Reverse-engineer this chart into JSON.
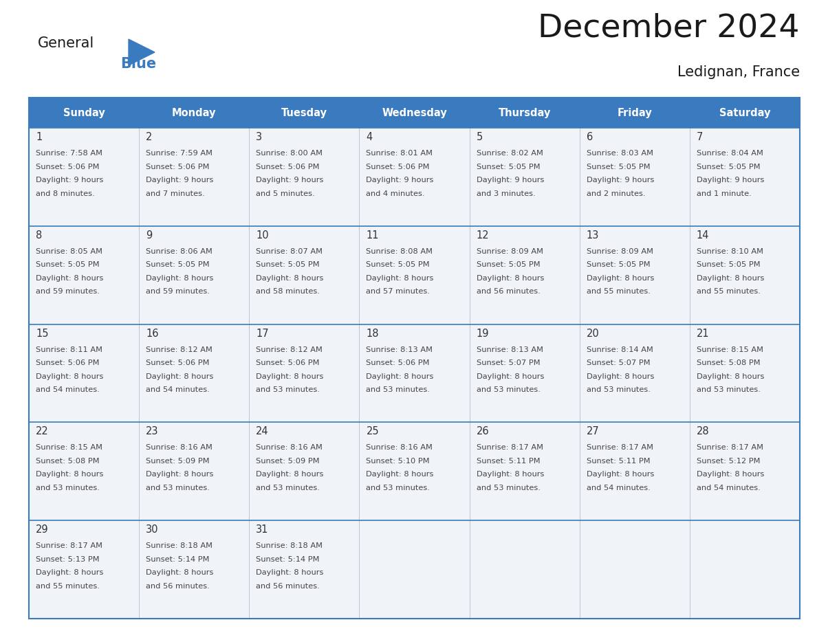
{
  "title": "December 2024",
  "subtitle": "Ledignan, France",
  "days_of_week": [
    "Sunday",
    "Monday",
    "Tuesday",
    "Wednesday",
    "Thursday",
    "Friday",
    "Saturday"
  ],
  "header_bg": "#3a7abf",
  "header_text": "#FFFFFF",
  "cell_bg": "#f0f4f8",
  "border_color": "#3a7abf",
  "day_num_color": "#333333",
  "cell_text_color": "#444444",
  "title_color": "#1a1a1a",
  "logo_general_color": "#1a1a1a",
  "logo_blue_color": "#3a7abf",
  "weeks": [
    [
      {
        "day": 1,
        "sunrise": "7:58 AM",
        "sunset": "5:06 PM",
        "daylight": "9 hours",
        "daylight2": "and 8 minutes."
      },
      {
        "day": 2,
        "sunrise": "7:59 AM",
        "sunset": "5:06 PM",
        "daylight": "9 hours",
        "daylight2": "and 7 minutes."
      },
      {
        "day": 3,
        "sunrise": "8:00 AM",
        "sunset": "5:06 PM",
        "daylight": "9 hours",
        "daylight2": "and 5 minutes."
      },
      {
        "day": 4,
        "sunrise": "8:01 AM",
        "sunset": "5:06 PM",
        "daylight": "9 hours",
        "daylight2": "and 4 minutes."
      },
      {
        "day": 5,
        "sunrise": "8:02 AM",
        "sunset": "5:05 PM",
        "daylight": "9 hours",
        "daylight2": "and 3 minutes."
      },
      {
        "day": 6,
        "sunrise": "8:03 AM",
        "sunset": "5:05 PM",
        "daylight": "9 hours",
        "daylight2": "and 2 minutes."
      },
      {
        "day": 7,
        "sunrise": "8:04 AM",
        "sunset": "5:05 PM",
        "daylight": "9 hours",
        "daylight2": "and 1 minute."
      }
    ],
    [
      {
        "day": 8,
        "sunrise": "8:05 AM",
        "sunset": "5:05 PM",
        "daylight": "8 hours",
        "daylight2": "and 59 minutes."
      },
      {
        "day": 9,
        "sunrise": "8:06 AM",
        "sunset": "5:05 PM",
        "daylight": "8 hours",
        "daylight2": "and 59 minutes."
      },
      {
        "day": 10,
        "sunrise": "8:07 AM",
        "sunset": "5:05 PM",
        "daylight": "8 hours",
        "daylight2": "and 58 minutes."
      },
      {
        "day": 11,
        "sunrise": "8:08 AM",
        "sunset": "5:05 PM",
        "daylight": "8 hours",
        "daylight2": "and 57 minutes."
      },
      {
        "day": 12,
        "sunrise": "8:09 AM",
        "sunset": "5:05 PM",
        "daylight": "8 hours",
        "daylight2": "and 56 minutes."
      },
      {
        "day": 13,
        "sunrise": "8:09 AM",
        "sunset": "5:05 PM",
        "daylight": "8 hours",
        "daylight2": "and 55 minutes."
      },
      {
        "day": 14,
        "sunrise": "8:10 AM",
        "sunset": "5:05 PM",
        "daylight": "8 hours",
        "daylight2": "and 55 minutes."
      }
    ],
    [
      {
        "day": 15,
        "sunrise": "8:11 AM",
        "sunset": "5:06 PM",
        "daylight": "8 hours",
        "daylight2": "and 54 minutes."
      },
      {
        "day": 16,
        "sunrise": "8:12 AM",
        "sunset": "5:06 PM",
        "daylight": "8 hours",
        "daylight2": "and 54 minutes."
      },
      {
        "day": 17,
        "sunrise": "8:12 AM",
        "sunset": "5:06 PM",
        "daylight": "8 hours",
        "daylight2": "and 53 minutes."
      },
      {
        "day": 18,
        "sunrise": "8:13 AM",
        "sunset": "5:06 PM",
        "daylight": "8 hours",
        "daylight2": "and 53 minutes."
      },
      {
        "day": 19,
        "sunrise": "8:13 AM",
        "sunset": "5:07 PM",
        "daylight": "8 hours",
        "daylight2": "and 53 minutes."
      },
      {
        "day": 20,
        "sunrise": "8:14 AM",
        "sunset": "5:07 PM",
        "daylight": "8 hours",
        "daylight2": "and 53 minutes."
      },
      {
        "day": 21,
        "sunrise": "8:15 AM",
        "sunset": "5:08 PM",
        "daylight": "8 hours",
        "daylight2": "and 53 minutes."
      }
    ],
    [
      {
        "day": 22,
        "sunrise": "8:15 AM",
        "sunset": "5:08 PM",
        "daylight": "8 hours",
        "daylight2": "and 53 minutes."
      },
      {
        "day": 23,
        "sunrise": "8:16 AM",
        "sunset": "5:09 PM",
        "daylight": "8 hours",
        "daylight2": "and 53 minutes."
      },
      {
        "day": 24,
        "sunrise": "8:16 AM",
        "sunset": "5:09 PM",
        "daylight": "8 hours",
        "daylight2": "and 53 minutes."
      },
      {
        "day": 25,
        "sunrise": "8:16 AM",
        "sunset": "5:10 PM",
        "daylight": "8 hours",
        "daylight2": "and 53 minutes."
      },
      {
        "day": 26,
        "sunrise": "8:17 AM",
        "sunset": "5:11 PM",
        "daylight": "8 hours",
        "daylight2": "and 53 minutes."
      },
      {
        "day": 27,
        "sunrise": "8:17 AM",
        "sunset": "5:11 PM",
        "daylight": "8 hours",
        "daylight2": "and 54 minutes."
      },
      {
        "day": 28,
        "sunrise": "8:17 AM",
        "sunset": "5:12 PM",
        "daylight": "8 hours",
        "daylight2": "and 54 minutes."
      }
    ],
    [
      {
        "day": 29,
        "sunrise": "8:17 AM",
        "sunset": "5:13 PM",
        "daylight": "8 hours",
        "daylight2": "and 55 minutes."
      },
      {
        "day": 30,
        "sunrise": "8:18 AM",
        "sunset": "5:14 PM",
        "daylight": "8 hours",
        "daylight2": "and 56 minutes."
      },
      {
        "day": 31,
        "sunrise": "8:18 AM",
        "sunset": "5:14 PM",
        "daylight": "8 hours",
        "daylight2": "and 56 minutes."
      },
      null,
      null,
      null,
      null
    ]
  ]
}
